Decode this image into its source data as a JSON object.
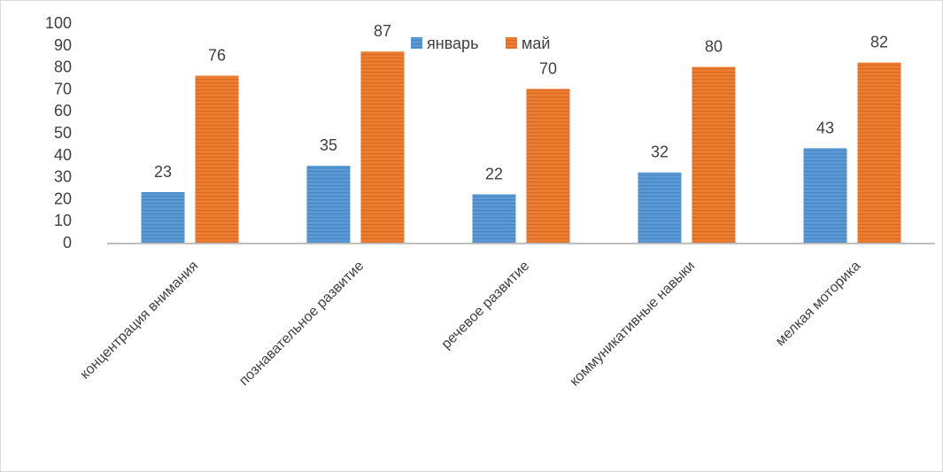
{
  "chart_data": {
    "type": "bar",
    "categories": [
      "концентрация внимания",
      "познавательное развитие",
      "речевое развитие",
      "коммуникативные навыки",
      "мелкая моторика"
    ],
    "series": [
      {
        "name": "январь",
        "values": [
          23,
          35,
          22,
          32,
          43
        ],
        "color": "#5b9bd5",
        "stripe": "#4a86c4"
      },
      {
        "name": "май",
        "values": [
          76,
          87,
          70,
          80,
          82
        ],
        "color": "#ed7d31",
        "stripe": "#d96a22"
      }
    ],
    "yticks": [
      "0",
      "10",
      "20",
      "30",
      "40",
      "50",
      "60",
      "70",
      "80",
      "90",
      "100"
    ],
    "ylim": [
      0,
      100
    ],
    "grid": false,
    "legend_position": "top-center",
    "title": "",
    "xlabel": "",
    "ylabel": ""
  }
}
